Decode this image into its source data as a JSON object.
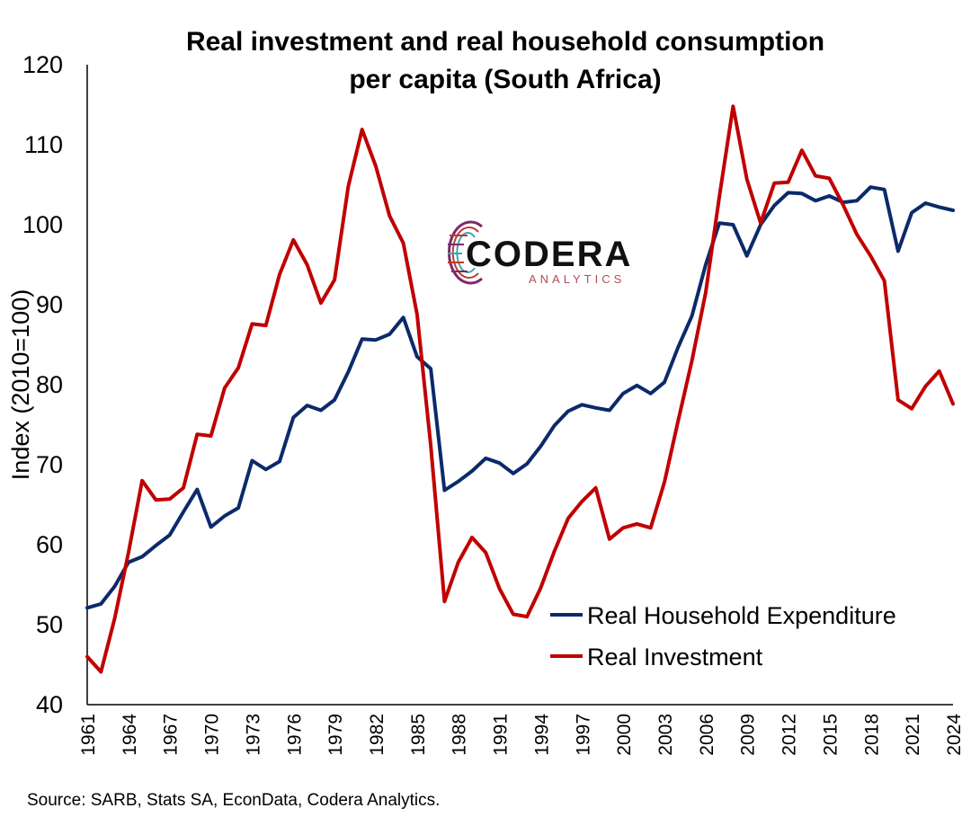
{
  "chart_data": {
    "type": "line",
    "title_lines": [
      "Real investment and real household consumption",
      "per capita (South Africa)"
    ],
    "ylabel": "Index (2010=100)",
    "xlabel": "",
    "ylim": [
      40,
      120
    ],
    "yticks": [
      40,
      50,
      60,
      70,
      80,
      90,
      100,
      110,
      120
    ],
    "xlim": [
      1961,
      2024
    ],
    "xticks": [
      1961,
      1964,
      1967,
      1970,
      1973,
      1976,
      1979,
      1982,
      1985,
      1988,
      1991,
      1994,
      1997,
      2000,
      2003,
      2006,
      2009,
      2012,
      2015,
      2018,
      2021,
      2024
    ],
    "grid": false,
    "legend_position": "lower-right",
    "x": [
      1961,
      1962,
      1963,
      1964,
      1965,
      1966,
      1967,
      1968,
      1969,
      1970,
      1971,
      1972,
      1973,
      1974,
      1975,
      1976,
      1977,
      1978,
      1979,
      1980,
      1981,
      1982,
      1983,
      1984,
      1985,
      1986,
      1987,
      1988,
      1989,
      1990,
      1991,
      1992,
      1993,
      1994,
      1995,
      1996,
      1997,
      1998,
      1999,
      2000,
      2001,
      2002,
      2003,
      2004,
      2005,
      2006,
      2007,
      2008,
      2009,
      2010,
      2011,
      2012,
      2013,
      2014,
      2015,
      2016,
      2017,
      2018,
      2019,
      2020,
      2021,
      2022,
      2023,
      2024
    ],
    "series": [
      {
        "name": "Real Household Expenditure",
        "color": "#0b2a6b",
        "values": [
          52.1,
          52.6,
          54.8,
          57.8,
          58.5,
          59.9,
          61.2,
          64.1,
          66.9,
          62.2,
          63.6,
          64.6,
          70.5,
          69.4,
          70.4,
          75.9,
          77.4,
          76.8,
          78.1,
          81.6,
          85.7,
          85.6,
          86.3,
          88.4,
          83.5,
          82.0,
          66.8,
          67.9,
          69.2,
          70.8,
          70.2,
          68.9,
          70.1,
          72.3,
          74.9,
          76.7,
          77.5,
          77.1,
          76.8,
          78.9,
          79.9,
          78.9,
          80.3,
          84.7,
          88.6,
          95.0,
          100.2,
          100.0,
          96.1,
          100.0,
          102.4,
          104.0,
          103.9,
          103.0,
          103.6,
          102.8,
          103.0,
          104.7,
          104.4,
          96.7,
          101.5,
          102.7,
          102.2,
          101.8
        ]
      },
      {
        "name": "Real Investment",
        "color": "#c00000",
        "values": [
          46.0,
          44.1,
          50.8,
          59.0,
          68.0,
          65.6,
          65.7,
          67.1,
          73.8,
          73.6,
          79.6,
          82.1,
          87.6,
          87.4,
          93.8,
          98.1,
          95.0,
          90.2,
          93.1,
          104.8,
          111.9,
          107.3,
          101.1,
          97.7,
          88.8,
          72.4,
          52.9,
          57.8,
          60.9,
          59.0,
          54.5,
          51.3,
          51.0,
          54.6,
          59.2,
          63.3,
          65.4,
          67.1,
          60.7,
          62.1,
          62.6,
          62.1,
          67.8,
          75.5,
          83.0,
          91.5,
          103.5,
          114.8,
          105.7,
          100.2,
          105.2,
          105.3,
          109.3,
          106.1,
          105.8,
          102.5,
          98.8,
          96.1,
          93.0,
          78.1,
          77.0,
          79.8,
          81.7,
          77.6
        ]
      }
    ]
  },
  "logo": {
    "name": "CODERA",
    "subtitle": "ANALYTICS"
  },
  "source": "Source: SARB, Stats SA, EconData, Codera Analytics."
}
